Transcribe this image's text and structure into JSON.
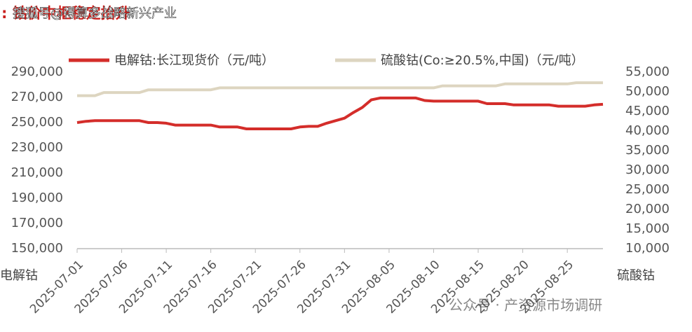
{
  "chart_data": {
    "type": "line",
    "title": ": 钴价中枢稳定抬升",
    "watermarks": [
      "搜狐号@得算多战略新兴产业",
      "公众号 · 产资源市场调研"
    ],
    "y_label": "电解钴",
    "y2_label": "硫酸钴",
    "categories": [
      "2025-07-01",
      null,
      null,
      null,
      null,
      "2025-07-06",
      null,
      null,
      null,
      null,
      "2025-07-11",
      null,
      null,
      null,
      null,
      "2025-07-16",
      null,
      null,
      null,
      null,
      "2025-07-21",
      null,
      null,
      null,
      null,
      "2025-07-26",
      null,
      null,
      null,
      null,
      "2025-07-31",
      null,
      null,
      null,
      null,
      "2025-08-05",
      null,
      null,
      null,
      null,
      "2025-08-10",
      null,
      null,
      null,
      null,
      "2025-08-15",
      null,
      null,
      null,
      null,
      "2025-08-20",
      null,
      null,
      null,
      null,
      "2025-08-25",
      null,
      null,
      null,
      null
    ],
    "series": [
      {
        "name": "电解钴:长江现货价（元/吨）",
        "color": "#d42d2a",
        "axis": "y",
        "values": [
          250000,
          251000,
          251500,
          251500,
          251500,
          251500,
          251500,
          251500,
          250000,
          250000,
          249500,
          248000,
          248000,
          248000,
          248000,
          248000,
          246500,
          246500,
          246500,
          245000,
          245000,
          245000,
          245000,
          245000,
          245000,
          246500,
          247000,
          247000,
          249500,
          251500,
          253500,
          258000,
          262000,
          268000,
          269500,
          269500,
          269500,
          269500,
          269500,
          267500,
          267000,
          267000,
          267000,
          267000,
          267000,
          267000,
          265000,
          265000,
          265000,
          264000,
          264000,
          264000,
          264000,
          264000,
          263000,
          263000,
          263000,
          263000,
          264000,
          264500
        ]
      },
      {
        "name": "硫酸钴(Co:≥20.5%,中国)（元/吨）",
        "color": "#ddd5c0",
        "axis": "y2",
        "values": [
          49000,
          49000,
          49000,
          49800,
          49800,
          49800,
          49800,
          49800,
          50500,
          50500,
          50500,
          50500,
          50500,
          50500,
          50500,
          50500,
          51000,
          51000,
          51000,
          51000,
          51000,
          51000,
          51000,
          51000,
          51000,
          51000,
          51000,
          51000,
          51000,
          51000,
          51000,
          51000,
          51000,
          51000,
          51000,
          51000,
          51000,
          51000,
          51000,
          51000,
          51000,
          51500,
          51500,
          51500,
          51500,
          51500,
          51500,
          51500,
          52000,
          52000,
          52000,
          52000,
          52000,
          52000,
          52000,
          52000,
          52300,
          52300,
          52300,
          52300
        ]
      }
    ],
    "ylim": [
      150000,
      290000
    ],
    "yticks": [
      {
        "value": 150000,
        "label": "150,000"
      },
      {
        "value": 170000,
        "label": "170,000"
      },
      {
        "value": 190000,
        "label": "190,000"
      },
      {
        "value": 210000,
        "label": "210,000"
      },
      {
        "value": 230000,
        "label": "230,000"
      },
      {
        "value": 250000,
        "label": "250,000"
      },
      {
        "value": 270000,
        "label": "270,000"
      },
      {
        "value": 290000,
        "label": "290,000"
      }
    ],
    "y2lim": [
      10000,
      55000
    ],
    "y2ticks": [
      {
        "value": 10000,
        "label": "10,000"
      },
      {
        "value": 15000,
        "label": "15,000"
      },
      {
        "value": 20000,
        "label": "20,000"
      },
      {
        "value": 25000,
        "label": "25,000"
      },
      {
        "value": 30000,
        "label": "30,000"
      },
      {
        "value": 35000,
        "label": "35,000"
      },
      {
        "value": 40000,
        "label": "40,000"
      },
      {
        "value": 45000,
        "label": "45,000"
      },
      {
        "value": 50000,
        "label": "50,000"
      },
      {
        "value": 55000,
        "label": "55,000"
      }
    ],
    "grid": false
  }
}
